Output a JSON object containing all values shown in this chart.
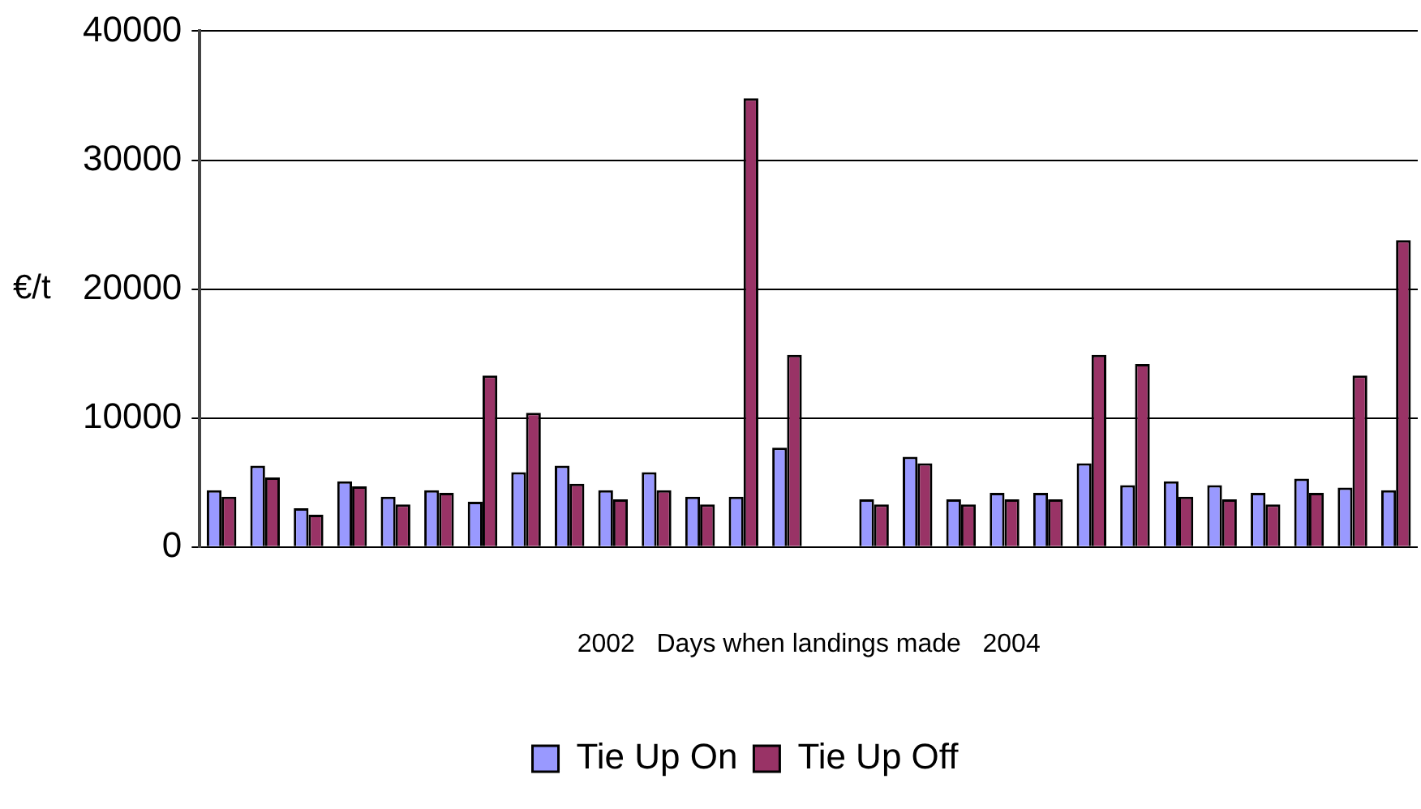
{
  "chart_data": {
    "type": "bar",
    "xlabel": "2002   Days when landings made   2004",
    "ylabel": "€/t",
    "categories": [
      null,
      null,
      null,
      null,
      null,
      null,
      null,
      null,
      null,
      null,
      null,
      null,
      null,
      null,
      null,
      null,
      null,
      null,
      null,
      null,
      null,
      null,
      null,
      null,
      null,
      null,
      null,
      null
    ],
    "series": [
      {
        "name": "Tie Up On",
        "color": "#9999ff",
        "values": [
          4400,
          6300,
          3000,
          5100,
          3900,
          4400,
          3500,
          5800,
          6300,
          4400,
          5800,
          3900,
          3900,
          7700,
          null,
          3700,
          7000,
          3700,
          4200,
          4200,
          6500,
          4800,
          5100,
          4800,
          4200,
          5300,
          4600,
          4400
        ]
      },
      {
        "name": "Tie Up Off",
        "color": "#993366",
        "values": [
          3900,
          5400,
          2500,
          4700,
          3300,
          4200,
          13300,
          10400,
          4900,
          3700,
          4400,
          3300,
          34800,
          14900,
          null,
          3300,
          6500,
          3300,
          3700,
          3700,
          14900,
          14200,
          3900,
          3700,
          3300,
          4200,
          13300,
          23800
        ]
      }
    ],
    "ylim": [
      0,
      40000
    ],
    "yticks": [
      0,
      10000,
      20000,
      30000,
      40000
    ],
    "grid": "y",
    "legend": "bottom"
  }
}
